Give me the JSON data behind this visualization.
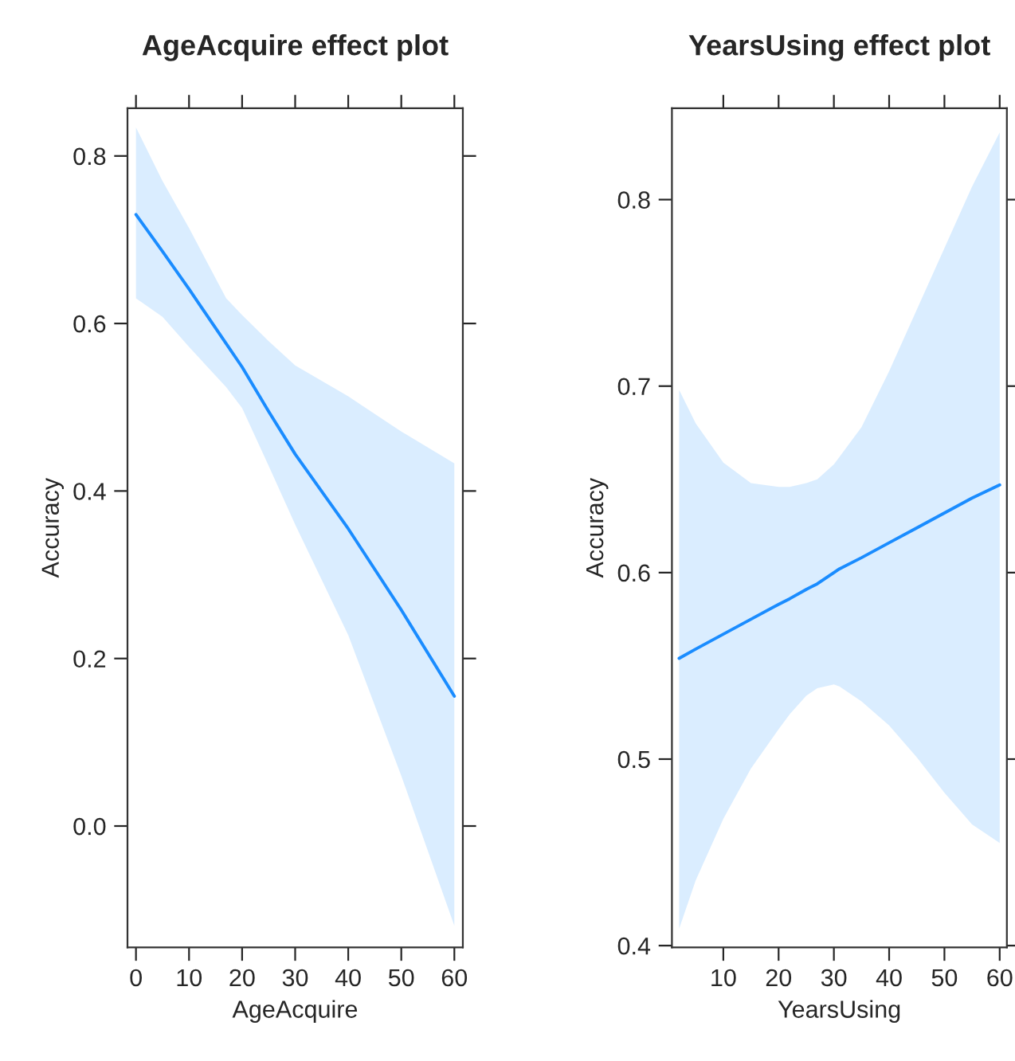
{
  "chart_data": [
    {
      "type": "line",
      "title": "AgeAcquire effect plot",
      "xlabel": "AgeAcquire",
      "ylabel": "Accuracy",
      "xlim": [
        -1.6,
        61.6
      ],
      "ylim": [
        -0.145,
        0.857
      ],
      "xticks": [
        0,
        10,
        20,
        30,
        40,
        50,
        60
      ],
      "yticks": [
        {
          "value": 0,
          "label": "0.0"
        },
        0.2,
        0.4,
        0.6,
        0.8
      ],
      "grid": false,
      "legend": false,
      "series": [
        {
          "color": "#1a8cff",
          "x": [
            0,
            5,
            10,
            17,
            20,
            25,
            30,
            40,
            50,
            60
          ],
          "values": [
            0.73,
            0.686,
            0.641,
            0.576,
            0.548,
            0.495,
            0.444,
            0.355,
            0.258,
            0.155
          ],
          "lower": [
            0.63,
            0.608,
            0.572,
            0.524,
            0.499,
            0.43,
            0.36,
            0.228,
            0.06,
            -0.119
          ],
          "upper": [
            0.834,
            0.77,
            0.714,
            0.63,
            0.61,
            0.579,
            0.55,
            0.513,
            0.471,
            0.433
          ]
        }
      ]
    },
    {
      "type": "line",
      "title": "YearsUsing effect plot",
      "xlabel": "YearsUsing",
      "ylabel": "Accuracy",
      "xlim": [
        0.7,
        61.3
      ],
      "ylim": [
        0.399,
        0.849
      ],
      "xticks": [
        10,
        20,
        30,
        40,
        50,
        60
      ],
      "yticks": [
        0.4,
        0.5,
        0.6,
        0.7,
        0.8
      ],
      "grid": false,
      "legend": false,
      "series": [
        {
          "color": "#1a8cff",
          "x": [
            2,
            5,
            10,
            15,
            20,
            22,
            25,
            27,
            30,
            31,
            35,
            40,
            45,
            50,
            55,
            60
          ],
          "values": [
            0.554,
            0.559,
            0.567,
            0.575,
            0.583,
            0.586,
            0.591,
            0.594,
            0.6,
            0.602,
            0.608,
            0.616,
            0.624,
            0.632,
            0.64,
            0.647
          ],
          "lower": [
            0.409,
            0.435,
            0.468,
            0.495,
            0.516,
            0.524,
            0.534,
            0.538,
            0.54,
            0.539,
            0.531,
            0.518,
            0.501,
            0.482,
            0.465,
            0.455
          ],
          "upper": [
            0.698,
            0.68,
            0.659,
            0.648,
            0.646,
            0.646,
            0.648,
            0.65,
            0.658,
            0.662,
            0.678,
            0.708,
            0.741,
            0.774,
            0.807,
            0.836
          ]
        }
      ]
    }
  ]
}
